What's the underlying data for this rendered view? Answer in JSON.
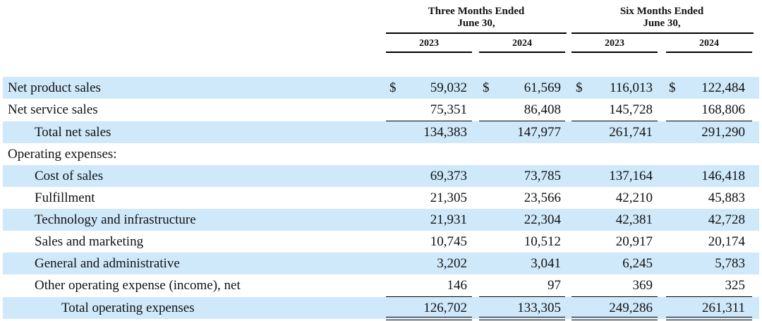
{
  "header": {
    "three_months": {
      "line1": "Three Months Ended",
      "line2": "June 30,"
    },
    "six_months": {
      "line1": "Six Months Ended",
      "line2": "June 30,"
    },
    "years": [
      "2023",
      "2024",
      "2023",
      "2024"
    ]
  },
  "currency_symbol": "$",
  "rows": [
    {
      "label": "Net product sales",
      "values": [
        "59,032",
        "61,569",
        "116,013",
        "122,484"
      ]
    },
    {
      "label": "Net service sales",
      "values": [
        "75,351",
        "86,408",
        "145,728",
        "168,806"
      ]
    },
    {
      "label": "Total net sales",
      "values": [
        "134,383",
        "147,977",
        "261,741",
        "291,290"
      ]
    },
    {
      "label": "Operating expenses:",
      "values": [
        "",
        "",
        "",
        ""
      ]
    },
    {
      "label": "Cost of sales",
      "values": [
        "69,373",
        "73,785",
        "137,164",
        "146,418"
      ]
    },
    {
      "label": "Fulfillment",
      "values": [
        "21,305",
        "23,566",
        "42,210",
        "45,883"
      ]
    },
    {
      "label": "Technology and infrastructure",
      "values": [
        "21,931",
        "22,304",
        "42,381",
        "42,728"
      ]
    },
    {
      "label": "Sales and marketing",
      "values": [
        "10,745",
        "10,512",
        "20,917",
        "20,174"
      ]
    },
    {
      "label": "General and administrative",
      "values": [
        "3,202",
        "3,041",
        "6,245",
        "5,783"
      ]
    },
    {
      "label": "Other operating expense (income), net",
      "values": [
        "146",
        "97",
        "369",
        "325"
      ]
    },
    {
      "label": "Total operating expenses",
      "values": [
        "126,702",
        "133,305",
        "249,286",
        "261,311"
      ]
    }
  ]
}
